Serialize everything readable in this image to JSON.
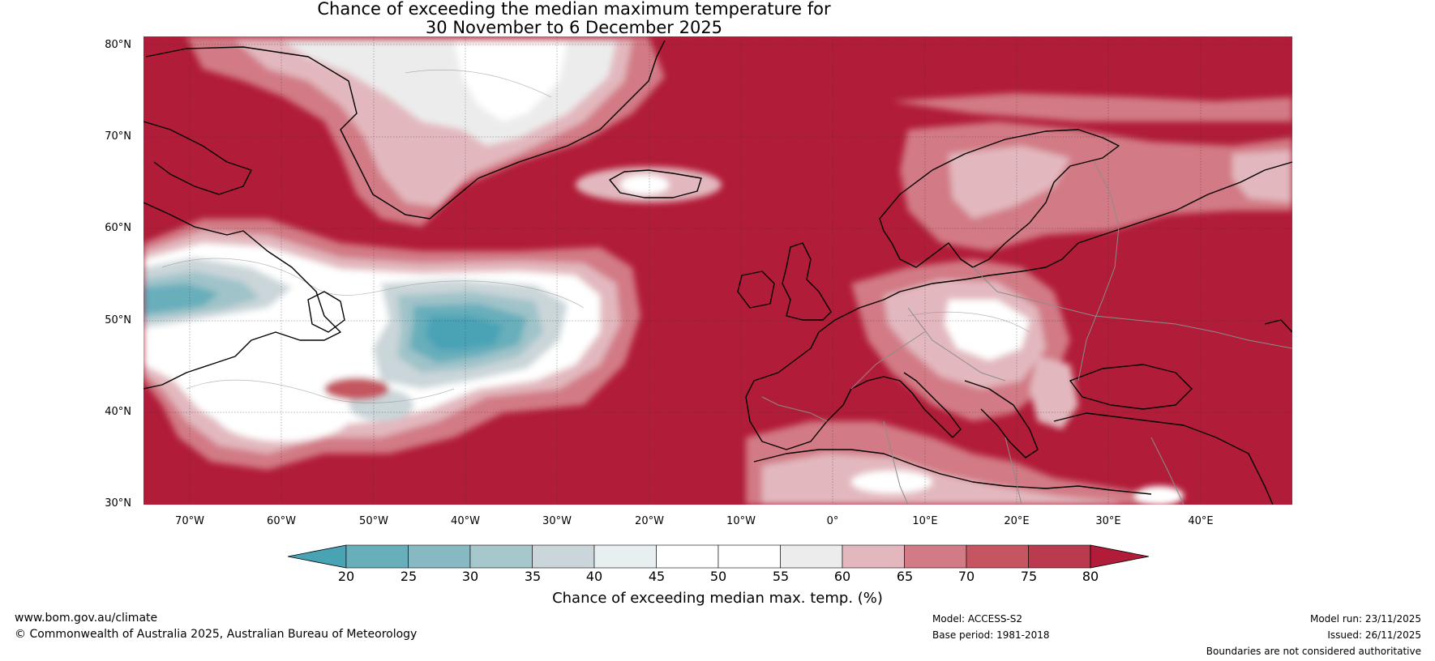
{
  "title": {
    "line1": "Chance of exceeding the median maximum temperature for",
    "line2": "30 November to 6 December 2025"
  },
  "map": {
    "lat_labels": [
      "80°N",
      "70°N",
      "60°N",
      "50°N",
      "40°N",
      "30°N"
    ],
    "lon_labels": [
      "70°W",
      "60°W",
      "50°W",
      "40°W",
      "30°W",
      "20°W",
      "10°W",
      "0°",
      "10°E",
      "20°E",
      "30°E",
      "40°E"
    ],
    "extent": {
      "lon_min": -75,
      "lon_max": 50,
      "lat_min": 30,
      "lat_max": 81
    },
    "colors": {
      "ocean_high": "#b11c38",
      "sea_lightest": "#e7b9bf",
      "sea_light": "#d27a85",
      "sea_mid": "#c55661",
      "neutral": "#ffffff",
      "neutral_grey": "#ececec",
      "cool_1": "#cad6d9",
      "cool_2": "#9fc3c9",
      "cool_3": "#67aebb",
      "cool_4": "#48a3b5"
    }
  },
  "colorbar": {
    "ticks": [
      "20",
      "25",
      "30",
      "35",
      "40",
      "45",
      "50",
      "55",
      "60",
      "65",
      "70",
      "75",
      "80"
    ],
    "colors": [
      "#48a3b5",
      "#69aebb",
      "#87b9c3",
      "#a6c8cd",
      "#cad6d9",
      "#e8eff1",
      "#ffffff",
      "#ffffff",
      "#ececec",
      "#e2b8be",
      "#d27a85",
      "#c55661",
      "#b93b4d",
      "#b11c38"
    ],
    "label": "Chance of exceeding median max. temp. (%)"
  },
  "footer": {
    "website": "www.bom.gov.au/climate",
    "copyright": "© Commonwealth of Australia 2025, Australian Bureau of Meteorology",
    "model": "Model: ACCESS-S2",
    "base_period": "Base period: 1981-2018",
    "model_run": "Model run: 23/11/2025",
    "issued": "Issued: 26/11/2025",
    "disclaimer": "Boundaries are not considered authoritative"
  }
}
